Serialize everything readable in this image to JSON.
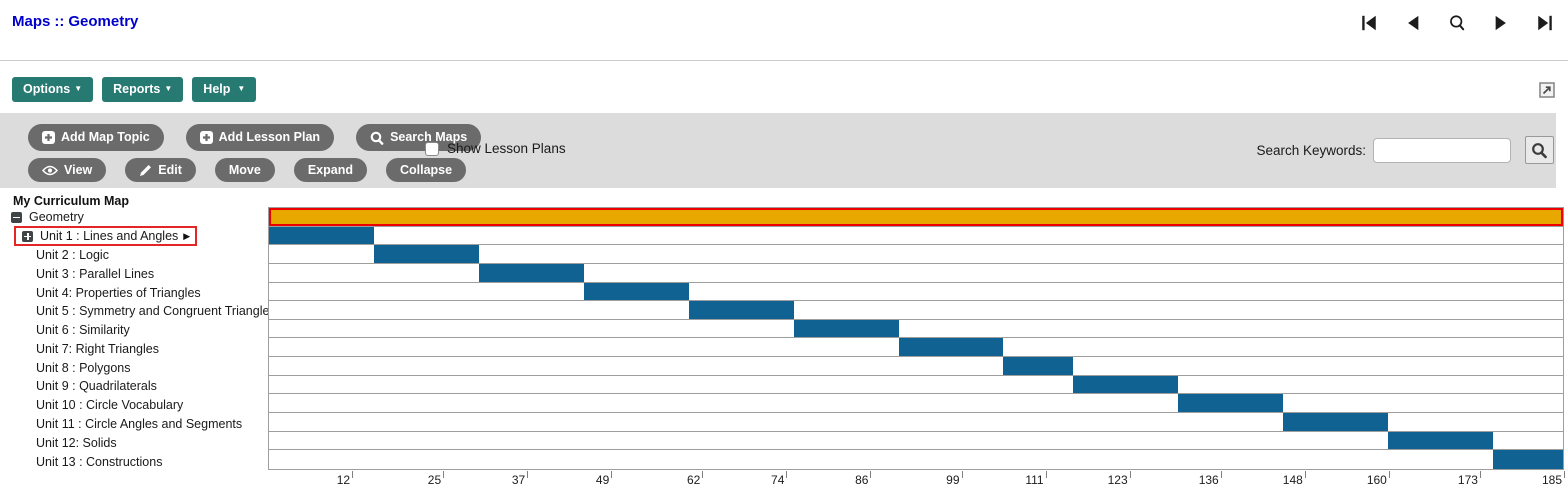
{
  "header": {
    "breadcrumb": {
      "root": "Maps",
      "separator": "::",
      "current": "Geometry"
    },
    "nav_icons": [
      "first-record",
      "previous-record",
      "search",
      "next-record",
      "last-record"
    ]
  },
  "menu": {
    "options_label": "Options",
    "reports_label": "Reports",
    "help_label": "Help",
    "dropdown_arrow": "▼",
    "button_color": "#267a71"
  },
  "toolbar": {
    "add_map_topic_label": "Add Map Topic",
    "add_lesson_plan_label": "Add Lesson Plan",
    "search_maps_label": "Search Maps",
    "show_lesson_plans_label": "Show Lesson Plans",
    "show_lesson_plans_checked": false,
    "view_label": "View",
    "edit_label": "Edit",
    "move_label": "Move",
    "expand_label": "Expand",
    "collapse_label": "Collapse",
    "search_keywords_label": "Search Keywords:",
    "search_input_value": "",
    "search_input_placeholder": "",
    "background_color": "#dcdcdc",
    "pill_color": "#6b6b6b"
  },
  "tree": {
    "title": "My Curriculum Map",
    "root_label": "Geometry",
    "unit1_arrow": "▶",
    "highlight_color": "#e42525"
  },
  "chart_data": {
    "type": "gantt",
    "xlim": [
      0,
      185
    ],
    "x_ticks": [
      12,
      25,
      37,
      49,
      62,
      74,
      86,
      99,
      111,
      123,
      136,
      148,
      160,
      173,
      185
    ],
    "grid": true,
    "bar_color": "#0f6292",
    "root_bar_color": "#e8a800",
    "root_bar_border_color": "#ee0000",
    "rows": [
      {
        "label": "Geometry",
        "start": 0,
        "end": 185,
        "type": "root"
      },
      {
        "label": "Unit 1 : Lines and Angles",
        "start": 0,
        "end": 15,
        "expandable": true,
        "highlighted": true
      },
      {
        "label": "Unit 2 : Logic",
        "start": 15,
        "end": 30
      },
      {
        "label": "Unit 3 : Parallel Lines",
        "start": 30,
        "end": 45
      },
      {
        "label": "Unit 4: Properties of Triangles",
        "start": 45,
        "end": 60
      },
      {
        "label": "Unit 5 : Symmetry and Congruent Triangles",
        "start": 60,
        "end": 75
      },
      {
        "label": "Unit 6 : Similarity",
        "start": 75,
        "end": 90
      },
      {
        "label": "Unit 7: Right Triangles",
        "start": 90,
        "end": 105
      },
      {
        "label": "Unit 8 : Polygons",
        "start": 105,
        "end": 115
      },
      {
        "label": "Unit 9 : Quadrilaterals",
        "start": 115,
        "end": 130
      },
      {
        "label": "Unit 10 : Circle Vocabulary",
        "start": 130,
        "end": 145
      },
      {
        "label": "Unit 11 : Circle Angles and Segments",
        "start": 145,
        "end": 160
      },
      {
        "label": "Unit 12: Solids",
        "start": 160,
        "end": 175
      },
      {
        "label": "Unit 13 : Constructions",
        "start": 175,
        "end": 185
      }
    ]
  }
}
